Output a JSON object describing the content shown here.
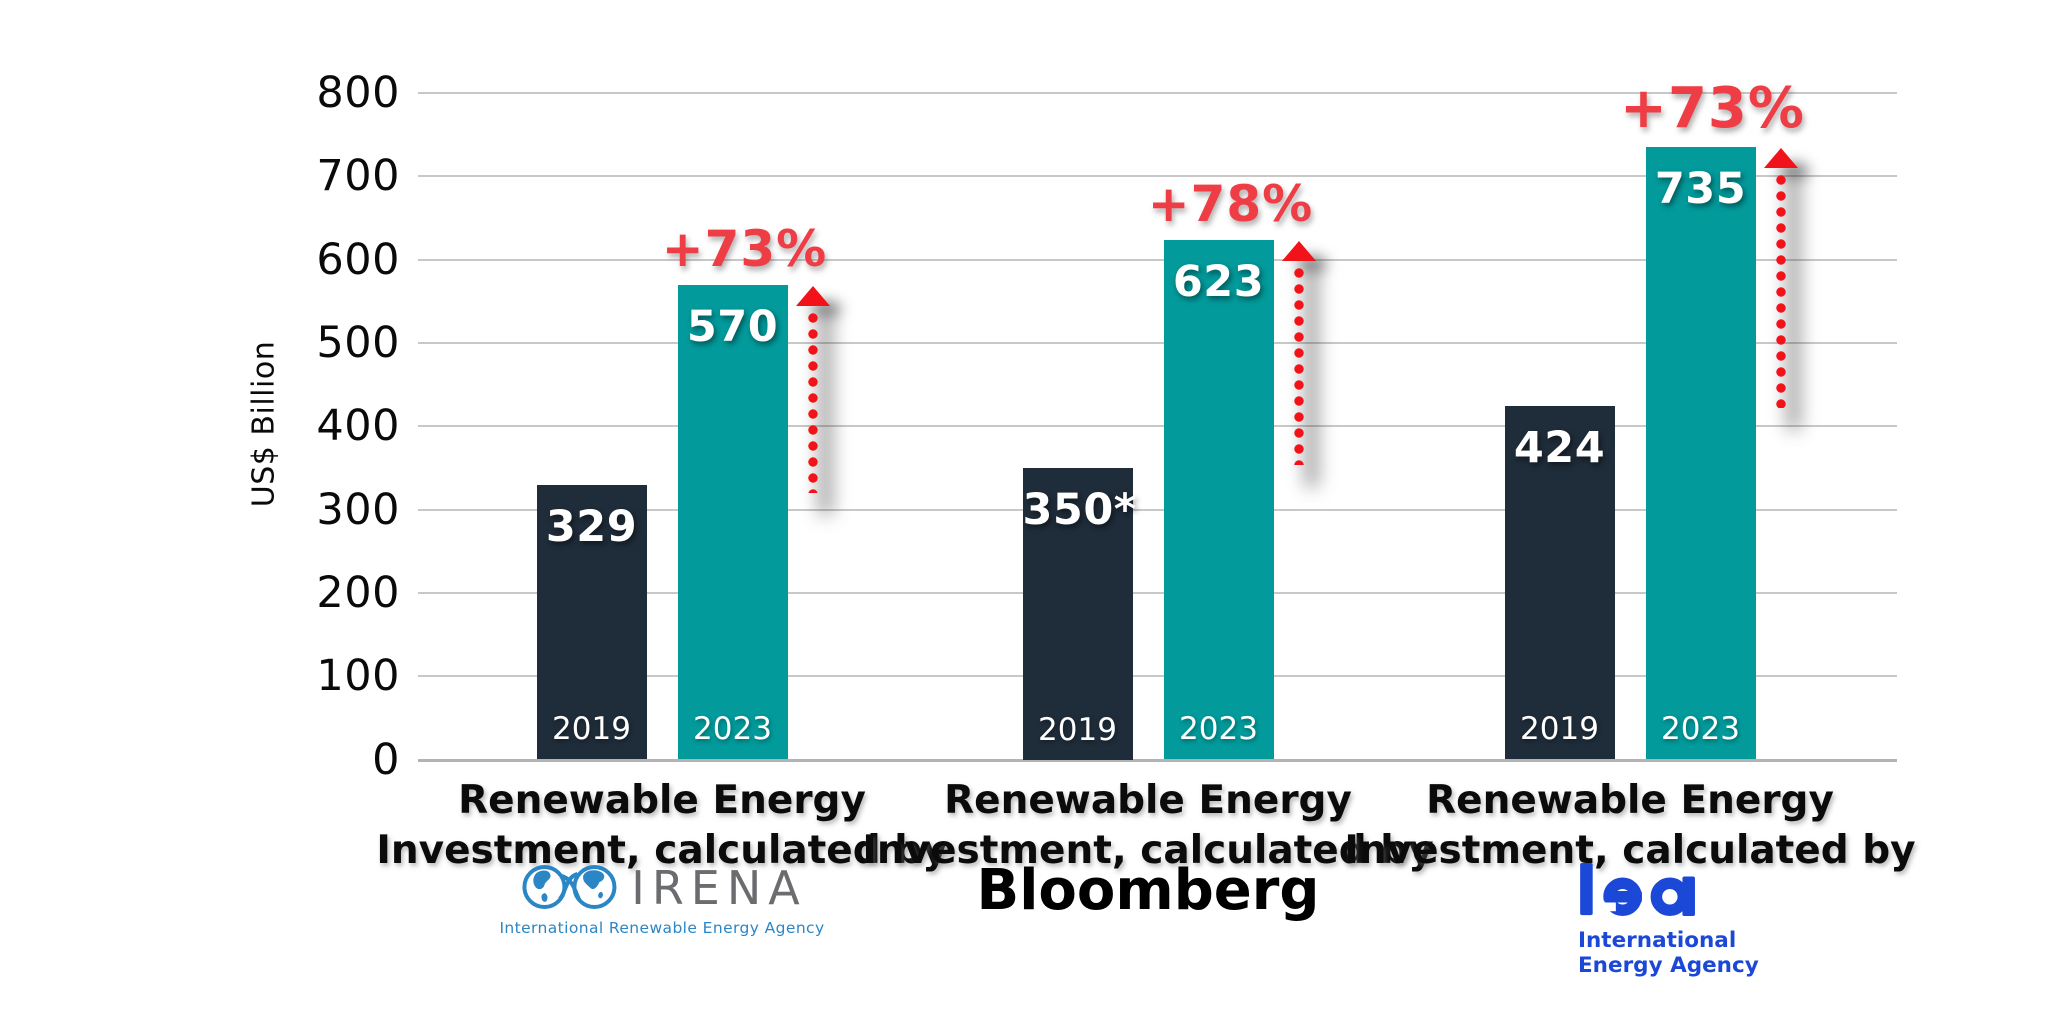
{
  "chart_data": {
    "type": "bar",
    "title": "",
    "ylabel": "US$ Billion",
    "ylim": [
      0,
      800
    ],
    "yticks": [
      0,
      100,
      200,
      300,
      400,
      500,
      600,
      700,
      800
    ],
    "grid": "horizontal",
    "legend_position": "none",
    "series_years": [
      "2019",
      "2023"
    ],
    "groups": [
      {
        "org": "IRENA",
        "caption_line1": "Renewable Energy",
        "caption_line2": "Investment, calculated by",
        "values": [
          329,
          570
        ],
        "value_labels": [
          "329",
          "570"
        ],
        "change_label": "+73%"
      },
      {
        "org": "Bloomberg",
        "caption_line1": "Renewable Energy",
        "caption_line2": "Investment, calculated by",
        "values": [
          350,
          623
        ],
        "value_labels": [
          "350*",
          "623"
        ],
        "change_label": "+78%"
      },
      {
        "org": "IEA",
        "caption_line1": "Renewable Energy",
        "caption_line2": "Investment, calculated by",
        "values": [
          424,
          735
        ],
        "value_labels": [
          "424",
          "735"
        ],
        "change_label": "+73%"
      }
    ],
    "colors": {
      "bar_2019": "#1f2c39",
      "bar_2023": "#029a9b",
      "change_text": "#ee3d45",
      "arrow": "#f2121a",
      "gridline": "#c8c8c8",
      "axis_line": "#b3b3b3",
      "bar_label_text": "#ffffff",
      "caption_text": "#0b0b0b"
    }
  },
  "logos": {
    "irena": {
      "wordmark": "IRENA",
      "subtitle": "International Renewable Energy Agency",
      "brand_blue": "#2b86c5",
      "brand_gray": "#6a6c6f"
    },
    "bloomberg": {
      "wordmark": "Bloomberg"
    },
    "iea": {
      "wordmark": "iea",
      "subtitle_line1": "International",
      "subtitle_line2": "Energy Agency",
      "brand_blue": "#1c48d8"
    }
  }
}
